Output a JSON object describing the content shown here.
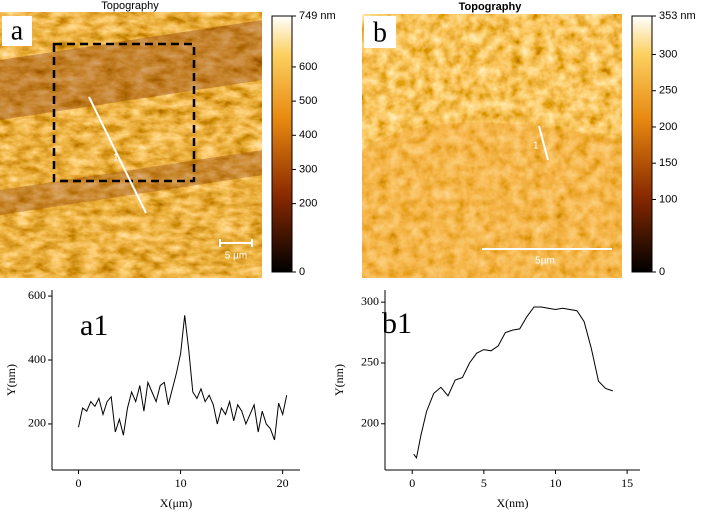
{
  "panels": [
    {
      "label": "a",
      "title": "Topography",
      "scale_bar": "5 µm",
      "profile_label": "1",
      "colorbar": {
        "clim": [
          0,
          749
        ],
        "ticks": [
          {
            "value": 749,
            "label": "749 nm"
          },
          600,
          500,
          400,
          300,
          200,
          0
        ]
      }
    },
    {
      "label": "b",
      "title": "Topography",
      "scale_bar": "5µm",
      "profile_label": "1",
      "colorbar": {
        "clim": [
          0,
          353
        ],
        "ticks": [
          {
            "value": 353,
            "label": "353 nm"
          },
          300,
          250,
          200,
          150,
          100,
          0
        ]
      }
    }
  ],
  "chart_data": [
    {
      "type": "line",
      "title": "a1",
      "x_label": "X(μm)",
      "y_label": "Y(nm)",
      "color": "#000000",
      "xlim": [
        -2.6,
        21.7
      ],
      "ylim": [
        56,
        619
      ],
      "xticks": [
        0,
        10,
        20
      ],
      "yticks": [
        200,
        400,
        600
      ],
      "x": [
        0,
        0.4,
        0.8,
        1.2,
        1.6,
        2.0,
        2.4,
        2.8,
        3.2,
        3.6,
        4.0,
        4.4,
        4.8,
        5.2,
        5.6,
        6.0,
        6.4,
        6.8,
        7.2,
        7.6,
        8.0,
        8.4,
        8.8,
        9.2,
        9.6,
        10.0,
        10.4,
        10.8,
        11.2,
        11.6,
        12.0,
        12.4,
        12.8,
        13.2,
        13.6,
        14.0,
        14.4,
        14.8,
        15.2,
        15.6,
        16.0,
        16.4,
        16.8,
        17.2,
        17.6,
        18.0,
        18.4,
        18.8,
        19.2,
        19.6,
        20.0,
        20.4
      ],
      "values": [
        190,
        250,
        240,
        270,
        255,
        280,
        230,
        270,
        285,
        175,
        215,
        165,
        250,
        300,
        270,
        320,
        240,
        330,
        300,
        270,
        320,
        330,
        260,
        310,
        360,
        420,
        540,
        430,
        300,
        280,
        310,
        270,
        290,
        260,
        200,
        250,
        230,
        270,
        210,
        260,
        240,
        200,
        230,
        260,
        175,
        240,
        200,
        185,
        150,
        265,
        230,
        290
      ]
    },
    {
      "type": "line",
      "title": "b1",
      "x_label": "X(nm)",
      "y_label": "Y(nm)",
      "color": "#000000",
      "xlim": [
        -1.9,
        15.9
      ],
      "ylim": [
        162,
        310
      ],
      "xticks": [
        0,
        5,
        10,
        15
      ],
      "yticks": [
        200,
        250,
        300
      ],
      "x": [
        0.1,
        0.3,
        0.6,
        1,
        1.5,
        2,
        2.5,
        3,
        3.5,
        4,
        4.5,
        5,
        5.5,
        6,
        6.5,
        7,
        7.5,
        8,
        8.5,
        9,
        9.5,
        10,
        10.5,
        11,
        11.5,
        12,
        12.5,
        13,
        13.5,
        14
      ],
      "values": [
        175,
        172,
        190,
        210,
        225,
        230,
        223,
        236,
        238,
        250,
        258,
        261,
        260,
        264,
        275,
        277,
        278,
        288,
        296,
        296,
        295,
        294,
        295,
        294,
        293,
        284,
        262,
        235,
        229,
        227
      ]
    }
  ]
}
